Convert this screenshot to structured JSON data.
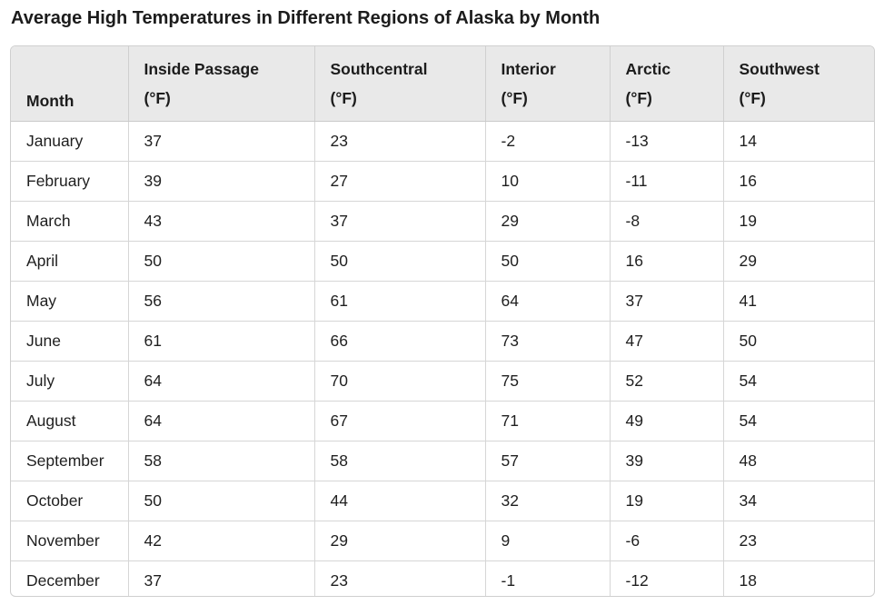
{
  "chart_data": {
    "type": "table",
    "title": "Average High Temperatures in Different Regions of Alaska by Month",
    "columns": [
      {
        "label": "Month",
        "unit": ""
      },
      {
        "label": "Inside Passage",
        "unit": "(°F)"
      },
      {
        "label": "Southcentral",
        "unit": "(°F)"
      },
      {
        "label": "Interior",
        "unit": "(°F)"
      },
      {
        "label": "Arctic",
        "unit": "(°F)"
      },
      {
        "label": "Southwest",
        "unit": "(°F)"
      }
    ],
    "rows": [
      [
        "January",
        "37",
        "23",
        "-2",
        "-13",
        "14"
      ],
      [
        "February",
        "39",
        "27",
        "10",
        "-11",
        "16"
      ],
      [
        "March",
        "43",
        "37",
        "29",
        "-8",
        "19"
      ],
      [
        "April",
        "50",
        "50",
        "50",
        "16",
        "29"
      ],
      [
        "May",
        "56",
        "61",
        "64",
        "37",
        "41"
      ],
      [
        "June",
        "61",
        "66",
        "73",
        "47",
        "50"
      ],
      [
        "July",
        "64",
        "70",
        "75",
        "52",
        "54"
      ],
      [
        "August",
        "64",
        "67",
        "71",
        "49",
        "54"
      ],
      [
        "September",
        "58",
        "58",
        "57",
        "39",
        "48"
      ],
      [
        "October",
        "50",
        "44",
        "32",
        "19",
        "34"
      ],
      [
        "November",
        "42",
        "29",
        "9",
        "-6",
        "23"
      ],
      [
        "December",
        "37",
        "23",
        "-1",
        "-12",
        "18"
      ]
    ]
  }
}
